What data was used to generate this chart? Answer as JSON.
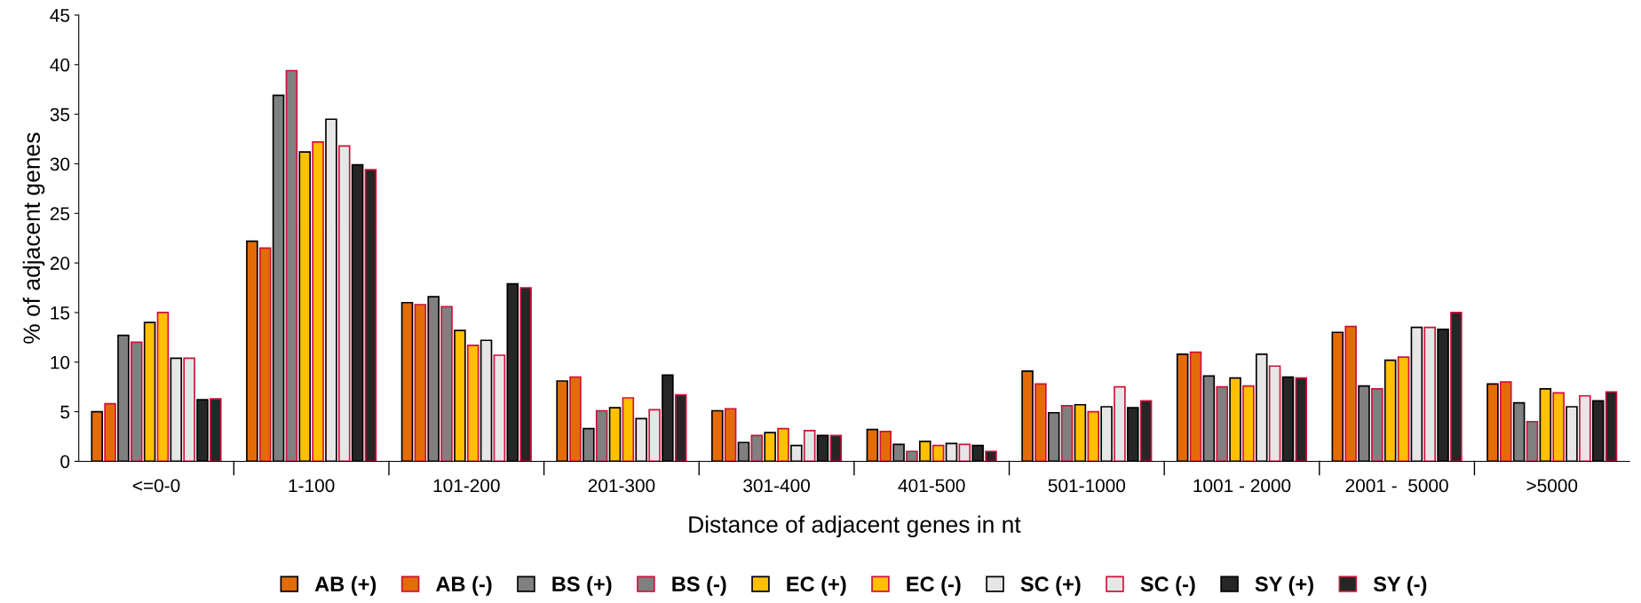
{
  "chart_data": {
    "type": "bar",
    "xlabel": "Distance of adjacent genes in nt",
    "ylabel": "% of adjacent genes",
    "categories": [
      "<=0-0",
      "1-100",
      "101-200",
      "201-300",
      "301-400",
      "401-500",
      "501-1000",
      "1001 - 2000",
      "2001 -  5000",
      ">5000"
    ],
    "series": [
      {
        "name": "AB (+)",
        "color": "#e36c09",
        "values": [
          5.0,
          22.2,
          16.0,
          8.1,
          5.1,
          3.2,
          9.1,
          10.8,
          13.0,
          7.8
        ]
      },
      {
        "name": "AB (-)",
        "color": "#e36c09",
        "values": [
          5.8,
          21.5,
          15.8,
          8.5,
          5.3,
          3.0,
          7.8,
          11.0,
          13.6,
          8.0
        ]
      },
      {
        "name": "BS (+)",
        "color": "#808080",
        "values": [
          12.7,
          36.9,
          16.6,
          3.3,
          1.9,
          1.7,
          4.9,
          8.6,
          7.6,
          5.9
        ]
      },
      {
        "name": "BS (-)",
        "color": "#808080",
        "values": [
          12.0,
          39.4,
          15.6,
          5.1,
          2.6,
          1.0,
          5.6,
          7.5,
          7.3,
          4.0
        ]
      },
      {
        "name": "EC (+)",
        "color": "#ffc000",
        "values": [
          14.0,
          31.2,
          13.2,
          5.4,
          2.9,
          2.0,
          5.7,
          8.4,
          10.2,
          7.3
        ]
      },
      {
        "name": "EC (-)",
        "color": "#ffc000",
        "values": [
          15.0,
          32.2,
          11.7,
          6.4,
          3.3,
          1.6,
          5.0,
          7.6,
          10.5,
          6.9
        ]
      },
      {
        "name": "SC (+)",
        "color": "#e7e6e6",
        "values": [
          10.4,
          34.5,
          12.2,
          4.3,
          1.6,
          1.8,
          5.5,
          10.8,
          13.5,
          5.5
        ]
      },
      {
        "name": "SC (-)",
        "color": "#e7e6e6",
        "values": [
          10.4,
          31.8,
          10.7,
          5.2,
          3.1,
          1.7,
          7.5,
          9.6,
          13.5,
          6.6
        ]
      },
      {
        "name": "SY (+)",
        "color": "#262626",
        "values": [
          6.2,
          29.9,
          17.9,
          8.7,
          2.6,
          1.6,
          5.4,
          8.5,
          13.3,
          6.1
        ]
      },
      {
        "name": "SY (-)",
        "color": "#262626",
        "values": [
          6.3,
          29.4,
          17.5,
          6.7,
          2.6,
          1.0,
          6.1,
          8.4,
          15.0,
          7.0
        ]
      }
    ],
    "ylim": [
      0,
      45
    ],
    "yticks": [
      0,
      5,
      10,
      15,
      20,
      25,
      30,
      35,
      40,
      45
    ],
    "grid": false,
    "legend": "bottom"
  }
}
